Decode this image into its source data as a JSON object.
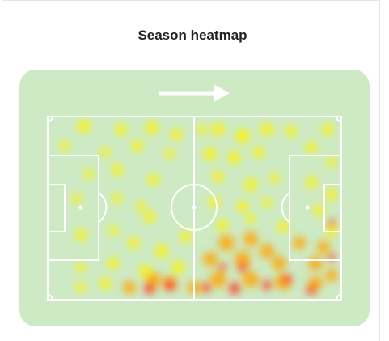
{
  "header": {
    "title": "Season heatmap"
  }
}
